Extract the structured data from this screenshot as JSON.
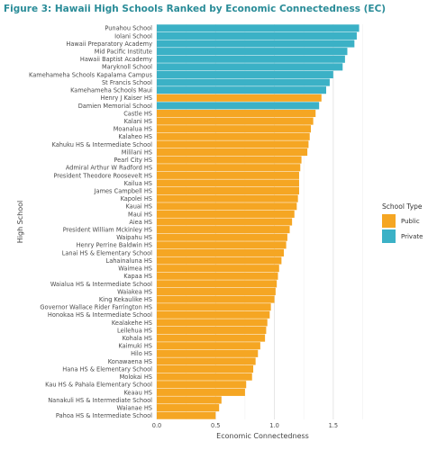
{
  "colors": {
    "title": "#2a8c98",
    "public": "#F5A623",
    "private": "#3BB1C6",
    "grid": "#e6e6e6",
    "panel": "#ffffff"
  },
  "chart_data": {
    "type": "bar",
    "orientation": "horizontal",
    "title": "Figure 3: Hawaii High Schools Ranked by Economic Connectedness (EC)",
    "xlabel": "Economic Connectedness",
    "ylabel": "High School",
    "xlim": [
      0,
      1.8
    ],
    "xticks": [
      "0.0",
      "0.5",
      "1.0",
      "1.5"
    ],
    "grid": true,
    "legend": {
      "title": "School Type",
      "position": "right",
      "entries": [
        "Public",
        "Private"
      ]
    },
    "categories": [
      "Punahou School",
      "Iolani School",
      "Hawaii Preparatory Academy",
      "Mid Pacific Institute",
      "Hawaii Baptist Academy",
      "Maryknoll School",
      "Kamehameha Schools Kapalama Campus",
      "St Francis School",
      "Kamehameha Schools Maui",
      "Henry J Kaiser HS",
      "Damien Memorial School",
      "Castle HS",
      "Kalani HS",
      "Moanalua HS",
      "Kalaheo HS",
      "Kahuku HS & Intermediate School",
      "Mililani HS",
      "Pearl City HS",
      "Admiral Arthur W Radford HS",
      "President Theodore Roosevelt HS",
      "Kailua HS",
      "James Campbell HS",
      "Kapolei HS",
      "Kauai HS",
      "Maui HS",
      "Aiea HS",
      "President William Mckinley HS",
      "Waipahu HS",
      "Henry Perrine Baldwin HS",
      "Lanai HS & Elementary School",
      "Lahainaluna HS",
      "Waimea HS",
      "Kapaa HS",
      "Waialua HS & Intermediate School",
      "Waiakea HS",
      "King Kekaulike HS",
      "Governor Wallace Rider Farrington HS",
      "Honokaa HS & Intermediate School",
      "Kealakehe HS",
      "Leilehua HS",
      "Kohala HS",
      "Kaimuki HS",
      "Hilo HS",
      "Konawaena HS",
      "Hana HS & Elementary School",
      "Molokai HS",
      "Kau HS & Pahala Elementary School",
      "Keaau HS",
      "Nanakuli HS & Intermediate School",
      "Waianae HS",
      "Pahoa HS & Intermediate School"
    ],
    "values": [
      1.72,
      1.7,
      1.68,
      1.62,
      1.6,
      1.58,
      1.5,
      1.47,
      1.44,
      1.4,
      1.38,
      1.35,
      1.33,
      1.31,
      1.3,
      1.29,
      1.28,
      1.23,
      1.22,
      1.21,
      1.21,
      1.21,
      1.2,
      1.19,
      1.17,
      1.15,
      1.13,
      1.11,
      1.1,
      1.08,
      1.06,
      1.04,
      1.03,
      1.02,
      1.01,
      1.0,
      0.97,
      0.96,
      0.94,
      0.93,
      0.92,
      0.88,
      0.86,
      0.84,
      0.82,
      0.81,
      0.76,
      0.75,
      0.55,
      0.53,
      0.5
    ],
    "school_type": [
      "Private",
      "Private",
      "Private",
      "Private",
      "Private",
      "Private",
      "Private",
      "Private",
      "Private",
      "Public",
      "Private",
      "Public",
      "Public",
      "Public",
      "Public",
      "Public",
      "Public",
      "Public",
      "Public",
      "Public",
      "Public",
      "Public",
      "Public",
      "Public",
      "Public",
      "Public",
      "Public",
      "Public",
      "Public",
      "Public",
      "Public",
      "Public",
      "Public",
      "Public",
      "Public",
      "Public",
      "Public",
      "Public",
      "Public",
      "Public",
      "Public",
      "Public",
      "Public",
      "Public",
      "Public",
      "Public",
      "Public",
      "Public",
      "Public",
      "Public",
      "Public"
    ]
  }
}
